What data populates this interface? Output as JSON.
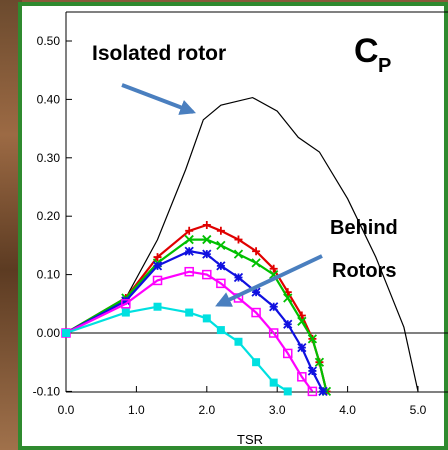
{
  "chart_data": {
    "type": "line",
    "title": "",
    "xlabel": "TSR",
    "ylabel": "",
    "xlim": [
      0.0,
      5.4
    ],
    "ylim": [
      -0.1,
      0.52
    ],
    "x_ticks": [
      "0.0",
      "1.0",
      "2.0",
      "3.0",
      "4.0",
      "5.0"
    ],
    "y_ticks": [
      "0.50",
      "0.40",
      "0.30",
      "0.20",
      "0.10",
      "0.00",
      "-0.10"
    ],
    "grid": false,
    "annotations": {
      "isolated": "Isolated rotor",
      "behind_line1": "Behind",
      "behind_line2": "Rotors",
      "cp_main": "C",
      "cp_sub": "P"
    },
    "series": [
      {
        "color": "#000000",
        "marker": "none",
        "x": [
          0.0,
          0.85,
          1.3,
          1.7,
          1.95,
          2.2,
          2.65,
          3.0,
          3.3,
          3.6,
          4.0,
          4.4,
          4.8,
          5.0
        ],
        "y": [
          0.0,
          0.06,
          0.16,
          0.28,
          0.365,
          0.39,
          0.403,
          0.38,
          0.335,
          0.31,
          0.23,
          0.13,
          0.01,
          -0.1
        ]
      },
      {
        "color": "#e00000",
        "marker": "+",
        "x": [
          0.0,
          0.85,
          1.3,
          1.75,
          2.0,
          2.2,
          2.45,
          2.7,
          2.95,
          3.15,
          3.35,
          3.5,
          3.6,
          3.7
        ],
        "y": [
          0.0,
          0.06,
          0.13,
          0.175,
          0.185,
          0.175,
          0.16,
          0.14,
          0.11,
          0.07,
          0.03,
          -0.01,
          -0.05,
          -0.1
        ]
      },
      {
        "color": "#00c000",
        "marker": "x",
        "x": [
          0.0,
          0.85,
          1.3,
          1.75,
          2.0,
          2.2,
          2.45,
          2.7,
          2.95,
          3.15,
          3.35,
          3.5,
          3.6,
          3.7
        ],
        "y": [
          0.0,
          0.06,
          0.12,
          0.16,
          0.16,
          0.15,
          0.135,
          0.12,
          0.1,
          0.06,
          0.02,
          -0.01,
          -0.05,
          -0.1
        ]
      },
      {
        "color": "#1010e0",
        "marker": "*",
        "x": [
          0.0,
          0.85,
          1.3,
          1.75,
          2.0,
          2.2,
          2.45,
          2.7,
          2.95,
          3.15,
          3.35,
          3.5,
          3.65
        ],
        "y": [
          0.0,
          0.055,
          0.115,
          0.14,
          0.135,
          0.115,
          0.095,
          0.07,
          0.045,
          0.015,
          -0.025,
          -0.065,
          -0.1
        ]
      },
      {
        "color": "#ff00ff",
        "marker": "square-open",
        "x": [
          0.0,
          0.85,
          1.3,
          1.75,
          2.0,
          2.2,
          2.45,
          2.7,
          2.95,
          3.15,
          3.35,
          3.5
        ],
        "y": [
          0.0,
          0.05,
          0.09,
          0.105,
          0.1,
          0.085,
          0.06,
          0.035,
          0.0,
          -0.035,
          -0.075,
          -0.1
        ]
      },
      {
        "color": "#00e0e0",
        "marker": "square",
        "x": [
          0.0,
          0.85,
          1.3,
          1.75,
          2.0,
          2.2,
          2.45,
          2.7,
          2.95,
          3.15
        ],
        "y": [
          0.0,
          0.035,
          0.045,
          0.035,
          0.025,
          0.005,
          -0.015,
          -0.05,
          -0.085,
          -0.1
        ]
      }
    ]
  }
}
